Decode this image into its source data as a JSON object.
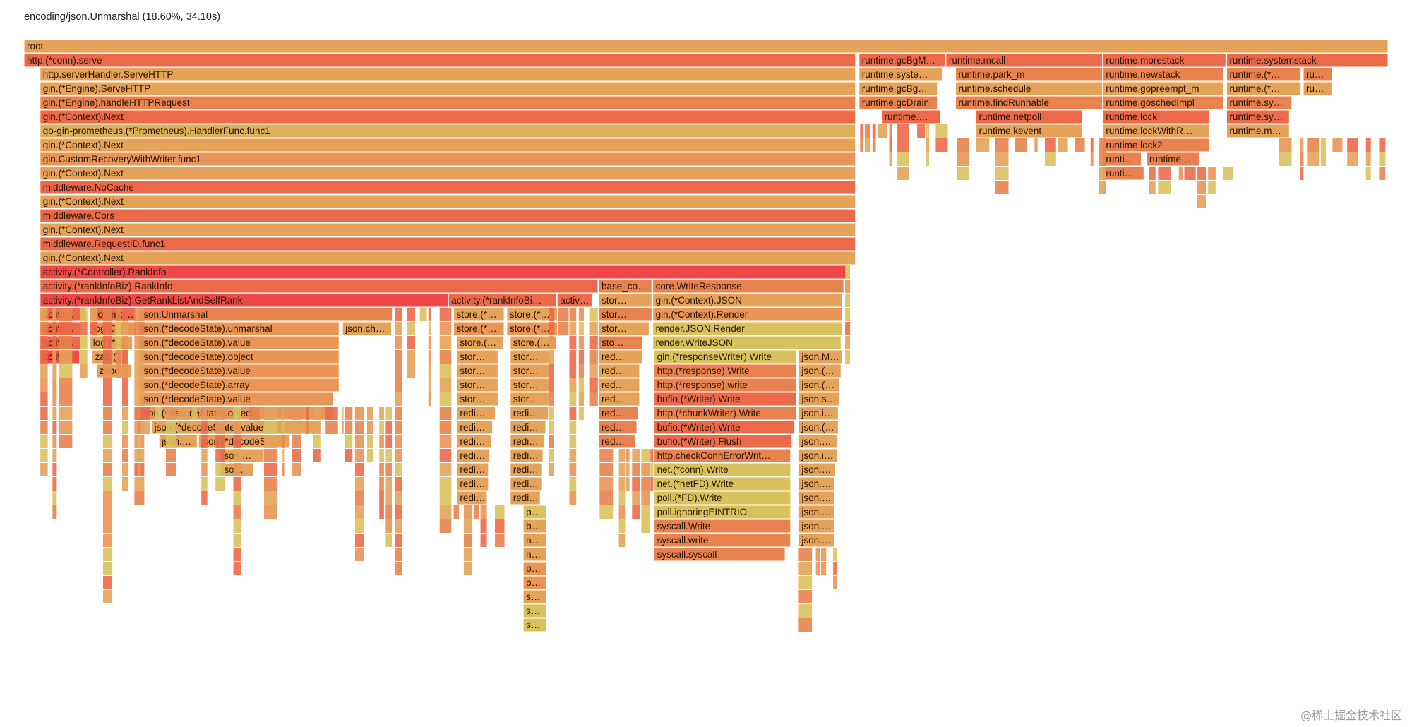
{
  "header": {
    "status": "encoding/json.Unmarshal (18.60%, 34.10s)"
  },
  "watermark": "@稀土掘金技术社区",
  "colors": {
    "c0": "#e5a35a",
    "c1": "#e8834f",
    "c2": "#ec6a4a",
    "c3": "#d9c25e",
    "c4": "#f04848",
    "c5": "#e99556",
    "c6": "#dcb05a"
  },
  "chart_data": {
    "type": "flamegraph",
    "unit": "percent_of_total",
    "note": "x = start offset (% of total samples), w = width (% of total samples), d = stack depth, c = color key",
    "frames": [
      {
        "n": "root",
        "x": 0,
        "w": 100,
        "d": 0,
        "c": "c0"
      },
      {
        "n": "http.(*conn).serve",
        "x": 0,
        "w": 60.96,
        "d": 1,
        "c": "c2"
      },
      {
        "n": "runtime.gcBgM…",
        "x": 61.22,
        "w": 6.31,
        "d": 1,
        "c": "c2"
      },
      {
        "n": "runtime.mcall",
        "x": 67.59,
        "w": 11.48,
        "d": 1,
        "c": "c2"
      },
      {
        "n": "runtime.morestack",
        "x": 79.11,
        "w": 9.0,
        "d": 1,
        "c": "c2"
      },
      {
        "n": "runtime.systemstack",
        "x": 88.17,
        "w": 11.83,
        "d": 1,
        "c": "c2"
      },
      {
        "n": "http.serverHandler.ServeHTTP",
        "x": 1.18,
        "w": 59.78,
        "d": 2,
        "c": "c0"
      },
      {
        "n": "runtime.syste…",
        "x": 61.22,
        "w": 6.1,
        "d": 2,
        "c": "c0"
      },
      {
        "n": "runtime.park_m",
        "x": 68.3,
        "w": 10.77,
        "d": 2,
        "c": "c1"
      },
      {
        "n": "runtime.newstack",
        "x": 79.11,
        "w": 8.85,
        "d": 2,
        "c": "c1"
      },
      {
        "n": "runtime.(*…",
        "x": 88.17,
        "w": 5.45,
        "d": 2,
        "c": "c1"
      },
      {
        "n": "ru…",
        "x": 93.79,
        "w": 2.1,
        "d": 2,
        "c": "c1"
      },
      {
        "n": "gin.(*Engine).ServeHTTP",
        "x": 1.18,
        "w": 59.78,
        "d": 3,
        "c": "c0"
      },
      {
        "n": "runtime.gcBg…",
        "x": 61.22,
        "w": 5.74,
        "d": 3,
        "c": "c0"
      },
      {
        "n": "runtime.schedule",
        "x": 68.3,
        "w": 10.77,
        "d": 3,
        "c": "c0"
      },
      {
        "n": "runtime.gopreempt_m",
        "x": 79.11,
        "w": 8.85,
        "d": 3,
        "c": "c0"
      },
      {
        "n": "runtime.(*…",
        "x": 88.17,
        "w": 5.45,
        "d": 3,
        "c": "c0"
      },
      {
        "n": "ru…",
        "x": 93.79,
        "w": 2.1,
        "d": 3,
        "c": "c0"
      },
      {
        "n": "gin.(*Engine).handleHTTPRequest",
        "x": 1.18,
        "w": 59.78,
        "d": 4,
        "c": "c1"
      },
      {
        "n": "runtime.gcDrain",
        "x": 61.22,
        "w": 5.74,
        "d": 4,
        "c": "c1"
      },
      {
        "n": "runtime.findRunnable",
        "x": 68.3,
        "w": 10.77,
        "d": 4,
        "c": "c1"
      },
      {
        "n": "runtime.goschedImpl",
        "x": 79.11,
        "w": 8.85,
        "d": 4,
        "c": "c1"
      },
      {
        "n": "runtime.sy…",
        "x": 88.17,
        "w": 4.78,
        "d": 4,
        "c": "c1"
      },
      {
        "n": "gin.(*Context).Next",
        "x": 1.18,
        "w": 59.78,
        "d": 5,
        "c": "c2"
      },
      {
        "n": "runtime.…",
        "x": 62.86,
        "w": 4.3,
        "d": 5,
        "c": "c2"
      },
      {
        "n": "runtime.netpoll",
        "x": 69.8,
        "w": 7.8,
        "d": 5,
        "c": "c2"
      },
      {
        "n": "runtime.lock",
        "x": 79.11,
        "w": 7.8,
        "d": 5,
        "c": "c2"
      },
      {
        "n": "runtime.sy…",
        "x": 88.17,
        "w": 4.6,
        "d": 5,
        "c": "c2"
      },
      {
        "n": "go-gin-prometheus.(*Prometheus).HandlerFunc.func1",
        "x": 1.18,
        "w": 59.78,
        "d": 6,
        "c": "c6"
      },
      {
        "n": "runtime.kevent",
        "x": 69.8,
        "w": 7.8,
        "d": 6,
        "c": "c0"
      },
      {
        "n": "runtime.lockWithR…",
        "x": 79.11,
        "w": 7.8,
        "d": 6,
        "c": "c0"
      },
      {
        "n": "runtime.m…",
        "x": 88.17,
        "w": 4.6,
        "d": 6,
        "c": "c0"
      },
      {
        "n": "gin.(*Context).Next",
        "x": 1.18,
        "w": 59.78,
        "d": 7,
        "c": "c0"
      },
      {
        "n": "runtime.lock2",
        "x": 79.11,
        "w": 7.8,
        "d": 7,
        "c": "c1"
      },
      {
        "n": "gin.CustomRecoveryWithWriter.func1",
        "x": 1.18,
        "w": 59.78,
        "d": 8,
        "c": "c5"
      },
      {
        "n": "runti…",
        "x": 79.11,
        "w": 2.8,
        "d": 8,
        "c": "c1"
      },
      {
        "n": "runtime…",
        "x": 82.3,
        "w": 3.9,
        "d": 8,
        "c": "c1"
      },
      {
        "n": "gin.(*Context).Next",
        "x": 1.18,
        "w": 59.78,
        "d": 9,
        "c": "c0"
      },
      {
        "n": "runti…",
        "x": 79.11,
        "w": 3.0,
        "d": 9,
        "c": "c1"
      },
      {
        "n": "middleware.NoCache",
        "x": 1.18,
        "w": 59.78,
        "d": 10,
        "c": "c2"
      },
      {
        "n": "gin.(*Context).Next",
        "x": 1.18,
        "w": 59.78,
        "d": 11,
        "c": "c0"
      },
      {
        "n": "middleware.Cors",
        "x": 1.18,
        "w": 59.78,
        "d": 12,
        "c": "c2"
      },
      {
        "n": "gin.(*Context).Next",
        "x": 1.18,
        "w": 59.78,
        "d": 13,
        "c": "c0"
      },
      {
        "n": "middleware.RequestID.func1",
        "x": 1.18,
        "w": 59.78,
        "d": 14,
        "c": "c2"
      },
      {
        "n": "gin.(*Context).Next",
        "x": 1.18,
        "w": 59.78,
        "d": 15,
        "c": "c0"
      },
      {
        "n": "activity.(*Controller).RankInfo",
        "x": 1.18,
        "w": 59.1,
        "d": 16,
        "c": "c4"
      },
      {
        "n": "activity.(*rankInfoBiz).RankInfo",
        "x": 1.18,
        "w": 40.9,
        "d": 17,
        "c": "c2"
      },
      {
        "n": "base_co…",
        "x": 42.13,
        "w": 3.9,
        "d": 17,
        "c": "c1"
      },
      {
        "n": "core.WriteResponse",
        "x": 46.1,
        "w": 14.0,
        "d": 17,
        "c": "c1"
      },
      {
        "n": "activity.(*rankInfoBiz).GetRankListAndSelfRank",
        "x": 1.18,
        "w": 29.9,
        "d": 18,
        "c": "c4"
      },
      {
        "n": "activity.(*rankInfoBi…",
        "x": 31.12,
        "w": 7.9,
        "d": 18,
        "c": "c2"
      },
      {
        "n": "activ…",
        "x": 39.09,
        "w": 2.6,
        "d": 18,
        "c": "c2"
      },
      {
        "n": "stor…",
        "x": 42.13,
        "w": 3.9,
        "d": 18,
        "c": "c0"
      },
      {
        "n": "gin.(*Context).JSON",
        "x": 46.1,
        "w": 13.9,
        "d": 18,
        "c": "c0"
      },
      {
        "n": "activi…",
        "x": 1.18,
        "w": 3.3,
        "d": 19,
        "c": "c2"
      },
      {
        "n": "commo…",
        "x": 4.85,
        "w": 3.4,
        "d": 19,
        "c": "c2"
      },
      {
        "n": "json.Unmarshal",
        "x": 8.4,
        "w": 18.6,
        "d": 19,
        "c": "c1"
      },
      {
        "n": "store.(*…",
        "x": 31.5,
        "w": 3.7,
        "d": 19,
        "c": "c0"
      },
      {
        "n": "store.(*…",
        "x": 35.4,
        "w": 3.7,
        "d": 19,
        "c": "c0"
      },
      {
        "n": "stor…",
        "x": 42.13,
        "w": 3.9,
        "d": 19,
        "c": "c1"
      },
      {
        "n": "gin.(*Context).Render",
        "x": 46.1,
        "w": 13.9,
        "d": 19,
        "c": "c5"
      },
      {
        "n": "activi…",
        "x": 1.18,
        "w": 3.0,
        "d": 20,
        "c": "c2"
      },
      {
        "n": "log.C",
        "x": 4.85,
        "w": 3.4,
        "d": 20,
        "c": "c5"
      },
      {
        "n": "json.(*decodeState).unmarshal",
        "x": 8.4,
        "w": 14.7,
        "d": 20,
        "c": "c5"
      },
      {
        "n": "json.ch…",
        "x": 23.35,
        "w": 3.6,
        "d": 20,
        "c": "c0"
      },
      {
        "n": "store.(*…",
        "x": 31.5,
        "w": 3.7,
        "d": 20,
        "c": "c5"
      },
      {
        "n": "store.(*…",
        "x": 35.4,
        "w": 3.7,
        "d": 20,
        "c": "c5"
      },
      {
        "n": "stor…",
        "x": 42.13,
        "w": 3.7,
        "d": 20,
        "c": "c0"
      },
      {
        "n": "render.JSON.Render",
        "x": 46.1,
        "w": 13.9,
        "d": 20,
        "c": "c3"
      },
      {
        "n": "activi…",
        "x": 1.18,
        "w": 3.0,
        "d": 21,
        "c": "c2"
      },
      {
        "n": "log.(*…",
        "x": 4.85,
        "w": 3.1,
        "d": 21,
        "c": "c0"
      },
      {
        "n": "json.(*decodeState).value",
        "x": 8.4,
        "w": 14.7,
        "d": 21,
        "c": "c5"
      },
      {
        "n": "store.(…",
        "x": 31.75,
        "w": 3.4,
        "d": 21,
        "c": "c0"
      },
      {
        "n": "store.(…",
        "x": 35.65,
        "w": 3.4,
        "d": 21,
        "c": "c0"
      },
      {
        "n": "sto…",
        "x": 42.13,
        "w": 3.2,
        "d": 21,
        "c": "c1"
      },
      {
        "n": "render.WriteJSON",
        "x": 46.1,
        "w": 13.8,
        "d": 21,
        "c": "c3"
      },
      {
        "n": "activ…",
        "x": 1.18,
        "w": 2.9,
        "d": 22,
        "c": "c4"
      },
      {
        "n": "zap.(…",
        "x": 5.0,
        "w": 2.6,
        "d": 22,
        "c": "c0"
      },
      {
        "n": "json.(*decodeState).object",
        "x": 8.4,
        "w": 14.7,
        "d": 22,
        "c": "c5"
      },
      {
        "n": "stor…",
        "x": 31.75,
        "w": 3.0,
        "d": 22,
        "c": "c0"
      },
      {
        "n": "stor…",
        "x": 35.65,
        "w": 2.9,
        "d": 22,
        "c": "c0"
      },
      {
        "n": "red…",
        "x": 42.13,
        "w": 3.2,
        "d": 22,
        "c": "c0"
      },
      {
        "n": "gin.(*responseWriter).Write",
        "x": 46.2,
        "w": 10.4,
        "d": 22,
        "c": "c3"
      },
      {
        "n": "json.M…",
        "x": 56.8,
        "w": 3.2,
        "d": 22,
        "c": "c0"
      },
      {
        "n": "zapc…",
        "x": 5.3,
        "w": 2.6,
        "d": 23,
        "c": "c0"
      },
      {
        "n": "json.(*decodeState).value",
        "x": 8.4,
        "w": 14.7,
        "d": 23,
        "c": "c5"
      },
      {
        "n": "stor…",
        "x": 31.75,
        "w": 3.0,
        "d": 23,
        "c": "c0"
      },
      {
        "n": "stor…",
        "x": 35.65,
        "w": 2.9,
        "d": 23,
        "c": "c0"
      },
      {
        "n": "red…",
        "x": 42.13,
        "w": 3.0,
        "d": 23,
        "c": "c0"
      },
      {
        "n": "http.(*response).Write",
        "x": 46.2,
        "w": 10.4,
        "d": 23,
        "c": "c1"
      },
      {
        "n": "json.(…",
        "x": 56.8,
        "w": 3.1,
        "d": 23,
        "c": "c0"
      },
      {
        "n": "json.(*decodeState).array",
        "x": 8.4,
        "w": 14.7,
        "d": 24,
        "c": "c5"
      },
      {
        "n": "stor…",
        "x": 31.75,
        "w": 3.0,
        "d": 24,
        "c": "c0"
      },
      {
        "n": "stor…",
        "x": 35.65,
        "w": 2.9,
        "d": 24,
        "c": "c0"
      },
      {
        "n": "red…",
        "x": 42.13,
        "w": 3.0,
        "d": 24,
        "c": "c0"
      },
      {
        "n": "http.(*response).write",
        "x": 46.2,
        "w": 10.4,
        "d": 24,
        "c": "c1"
      },
      {
        "n": "json.(…",
        "x": 56.8,
        "w": 3.0,
        "d": 24,
        "c": "c0"
      },
      {
        "n": "json.(*decodeState).value",
        "x": 8.4,
        "w": 14.3,
        "d": 25,
        "c": "c5"
      },
      {
        "n": "stor…",
        "x": 31.75,
        "w": 3.0,
        "d": 25,
        "c": "c0"
      },
      {
        "n": "stor…",
        "x": 35.65,
        "w": 2.9,
        "d": 25,
        "c": "c0"
      },
      {
        "n": "red…",
        "x": 42.13,
        "w": 3.0,
        "d": 25,
        "c": "c0"
      },
      {
        "n": "bufio.(*Writer).Write",
        "x": 46.2,
        "w": 10.4,
        "d": 25,
        "c": "c2"
      },
      {
        "n": "json.s…",
        "x": 56.8,
        "w": 3.0,
        "d": 25,
        "c": "c0"
      },
      {
        "n": "json.(*decodeState).object",
        "x": 8.4,
        "w": 14.3,
        "d": 26,
        "c": "c5"
      },
      {
        "n": "redi…",
        "x": 31.75,
        "w": 2.8,
        "d": 26,
        "c": "c0"
      },
      {
        "n": "redi…",
        "x": 35.65,
        "w": 2.8,
        "d": 26,
        "c": "c0"
      },
      {
        "n": "red…",
        "x": 42.13,
        "w": 2.9,
        "d": 26,
        "c": "c1"
      },
      {
        "n": "http.(*chunkWriter).Write",
        "x": 46.2,
        "w": 10.4,
        "d": 26,
        "c": "c1"
      },
      {
        "n": "json.i…",
        "x": 56.8,
        "w": 2.9,
        "d": 26,
        "c": "c0"
      },
      {
        "n": "json.(*decodeState).value",
        "x": 9.35,
        "w": 12.4,
        "d": 27,
        "c": "c0"
      },
      {
        "n": "redi…",
        "x": 31.75,
        "w": 2.6,
        "d": 27,
        "c": "c0"
      },
      {
        "n": "redi…",
        "x": 35.65,
        "w": 2.6,
        "d": 27,
        "c": "c0"
      },
      {
        "n": "red…",
        "x": 42.13,
        "w": 2.8,
        "d": 27,
        "c": "c1"
      },
      {
        "n": "bufio.(*Writer).Write",
        "x": 46.2,
        "w": 10.3,
        "d": 27,
        "c": "c2"
      },
      {
        "n": "json.(…",
        "x": 56.8,
        "w": 2.9,
        "d": 27,
        "c": "c0"
      },
      {
        "n": "json.…",
        "x": 9.9,
        "w": 2.8,
        "d": 28,
        "c": "c0"
      },
      {
        "n": "json.(*decodeS…",
        "x": 12.8,
        "w": 6.7,
        "d": 28,
        "c": "c0"
      },
      {
        "n": "redi…",
        "x": 31.75,
        "w": 2.5,
        "d": 28,
        "c": "c0"
      },
      {
        "n": "redi…",
        "x": 35.65,
        "w": 2.5,
        "d": 28,
        "c": "c0"
      },
      {
        "n": "red…",
        "x": 42.13,
        "w": 2.7,
        "d": 28,
        "c": "c1"
      },
      {
        "n": "bufio.(*Writer).Flush",
        "x": 46.2,
        "w": 10.1,
        "d": 28,
        "c": "c2"
      },
      {
        "n": "json.s…",
        "x": 56.8,
        "w": 2.8,
        "d": 28,
        "c": "c0"
      },
      {
        "n": "json.…",
        "x": 14.3,
        "w": 3.3,
        "d": 29,
        "c": "c0"
      },
      {
        "n": "redi…",
        "x": 31.75,
        "w": 2.4,
        "d": 29,
        "c": "c0"
      },
      {
        "n": "redi…",
        "x": 35.65,
        "w": 2.4,
        "d": 29,
        "c": "c0"
      },
      {
        "n": "http.checkConnErrorWrit…",
        "x": 46.2,
        "w": 10.0,
        "d": 29,
        "c": "c1"
      },
      {
        "n": "json.i…",
        "x": 56.8,
        "w": 2.8,
        "d": 29,
        "c": "c0"
      },
      {
        "n": "jso…",
        "x": 14.3,
        "w": 2.5,
        "d": 30,
        "c": "c0"
      },
      {
        "n": "redi…",
        "x": 31.75,
        "w": 2.3,
        "d": 30,
        "c": "c0"
      },
      {
        "n": "redi…",
        "x": 35.65,
        "w": 2.3,
        "d": 30,
        "c": "c0"
      },
      {
        "n": "net.(*conn).Write",
        "x": 46.2,
        "w": 10.0,
        "d": 30,
        "c": "c3"
      },
      {
        "n": "json.(…",
        "x": 56.8,
        "w": 2.7,
        "d": 30,
        "c": "c0"
      },
      {
        "n": "redi…",
        "x": 31.75,
        "w": 2.3,
        "d": 31,
        "c": "c0"
      },
      {
        "n": "redi…",
        "x": 35.65,
        "w": 2.3,
        "d": 31,
        "c": "c0"
      },
      {
        "n": "net.(*netFD).Write",
        "x": 46.2,
        "w": 10.0,
        "d": 31,
        "c": "c3"
      },
      {
        "n": "json.…",
        "x": 56.8,
        "w": 2.6,
        "d": 31,
        "c": "c0"
      },
      {
        "n": "redi…",
        "x": 31.75,
        "w": 2.2,
        "d": 32,
        "c": "c0"
      },
      {
        "n": "redi…",
        "x": 35.65,
        "w": 2.2,
        "d": 32,
        "c": "c0"
      },
      {
        "n": "poll.(*FD).Write",
        "x": 46.2,
        "w": 10.0,
        "d": 32,
        "c": "c3"
      },
      {
        "n": "json.s…",
        "x": 56.8,
        "w": 2.6,
        "d": 32,
        "c": "c0"
      },
      {
        "n": "po…",
        "x": 36.6,
        "w": 1.7,
        "d": 33,
        "c": "c3"
      },
      {
        "n": "poll.ignoringEINTRIO",
        "x": 46.2,
        "w": 10.0,
        "d": 33,
        "c": "c3"
      },
      {
        "n": "json.…",
        "x": 56.8,
        "w": 2.6,
        "d": 33,
        "c": "c0"
      },
      {
        "n": "bu…",
        "x": 36.6,
        "w": 1.7,
        "d": 34,
        "c": "c0"
      },
      {
        "n": "syscall.Write",
        "x": 46.2,
        "w": 10.0,
        "d": 34,
        "c": "c1"
      },
      {
        "n": "json.…",
        "x": 56.8,
        "w": 2.6,
        "d": 34,
        "c": "c0"
      },
      {
        "n": "ne…",
        "x": 36.6,
        "w": 1.7,
        "d": 35,
        "c": "c0"
      },
      {
        "n": "syscall.write",
        "x": 46.2,
        "w": 10.0,
        "d": 35,
        "c": "c1"
      },
      {
        "n": "json.…",
        "x": 56.8,
        "w": 2.6,
        "d": 35,
        "c": "c0"
      },
      {
        "n": "ne…",
        "x": 36.6,
        "w": 1.7,
        "d": 36,
        "c": "c0"
      },
      {
        "n": "syscall.syscall",
        "x": 46.2,
        "w": 9.6,
        "d": 36,
        "c": "c1"
      },
      {
        "n": "pol…",
        "x": 36.6,
        "w": 1.7,
        "d": 37,
        "c": "c5"
      },
      {
        "n": "pol…",
        "x": 36.6,
        "w": 1.7,
        "d": 38,
        "c": "c5"
      },
      {
        "n": "sy…",
        "x": 36.6,
        "w": 1.7,
        "d": 39,
        "c": "c0"
      },
      {
        "n": "sy…",
        "x": 36.6,
        "w": 1.7,
        "d": 40,
        "c": "c3"
      },
      {
        "n": "sy…",
        "x": 36.6,
        "w": 1.7,
        "d": 41,
        "c": "c3"
      }
    ]
  }
}
